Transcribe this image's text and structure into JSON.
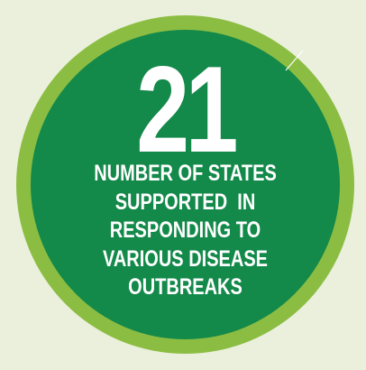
{
  "stat": {
    "number": "21",
    "caption_lines": [
      "NUMBER OF STATES",
      "SUPPORTED  IN",
      "RESPONDING TO",
      "VARIOUS DISEASE",
      "OUTBREAKS"
    ]
  },
  "colors": {
    "background": "#eaf0dc",
    "outer_ring": "#8cbd43",
    "inner_disc": "#13894a",
    "text": "#ffffff"
  }
}
